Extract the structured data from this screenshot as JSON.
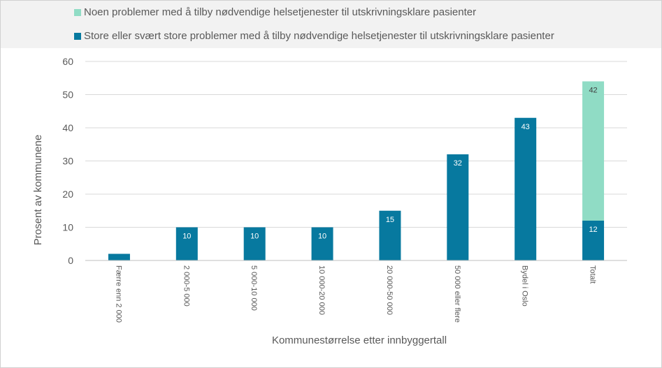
{
  "chart_data": {
    "type": "bar",
    "stacked": true,
    "categories": [
      "Færre enn 2 000",
      "2 000-5 000",
      "5 000-10 000",
      "10 000-20 000",
      "20 000-50 000",
      "50 000 eller flere",
      "Bydel i Oslo",
      "Totalt"
    ],
    "series": [
      {
        "name": "Store eller svært store problemer med å tilby nødvendige helsetjenester til utskrivningsklare pasienter",
        "color": "#07799f",
        "label_color": "#ffffff",
        "values": [
          2,
          10,
          10,
          10,
          15,
          32,
          43,
          12
        ],
        "labels": [
          "",
          "10",
          "10",
          "10",
          "15",
          "32",
          "43",
          "12"
        ]
      },
      {
        "name": "Noen problemer med å tilby nødvendige helsetjenester til utskrivningsklare pasienter",
        "color": "#90dcc5",
        "label_color": "#404040",
        "values": [
          0,
          0,
          0,
          0,
          0,
          0,
          0,
          42
        ],
        "labels": [
          "",
          "",
          "",
          "",
          "",
          "",
          "",
          "42"
        ]
      }
    ],
    "legend_order": [
      1,
      0
    ],
    "legend_position": "top",
    "xlabel": "Kommunestørrelse etter innbyggertall",
    "ylabel": "Prosent av kommunene",
    "ylim": [
      0,
      60
    ],
    "yticks": [
      0,
      10,
      20,
      30,
      40,
      50,
      60
    ],
    "grid": true
  }
}
